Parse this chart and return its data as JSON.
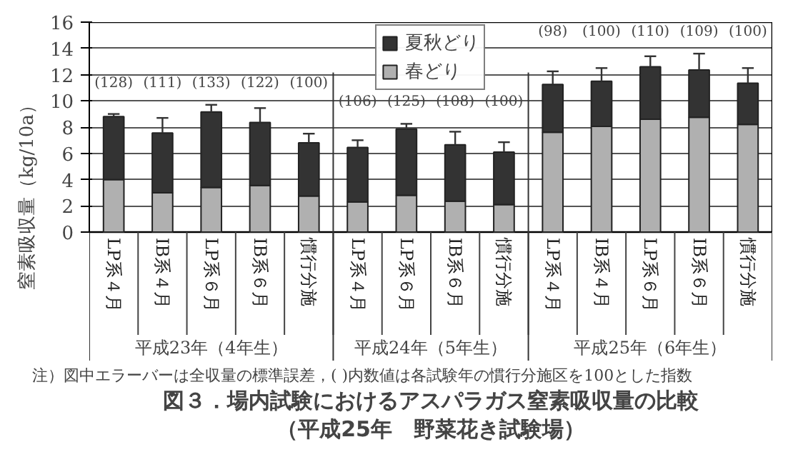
{
  "chart_data": {
    "type": "bar",
    "stacked": true,
    "title": "図３．場内試験におけるアスパラガス窒素吸収量の比較",
    "subtitle": "（平成25年　野菜花き試験場）",
    "ylabel": "窒素吸収量（kg/10a）",
    "categories": [
      "LP系４月",
      "IB系４月",
      "LP系６月",
      "IB系６月",
      "慣行分施",
      "LP系４月",
      "LP系６月",
      "IB系６月",
      "慣行分施",
      "LP系４月",
      "IB系４月",
      "LP系６月",
      "IB系６月",
      "慣行分施"
    ],
    "series": [
      {
        "name": "春どり",
        "color": "#b0b0b0",
        "values": [
          4.0,
          3.0,
          3.4,
          3.55,
          2.75,
          2.3,
          2.8,
          2.35,
          2.1,
          7.6,
          8.05,
          8.6,
          8.75,
          8.2
        ]
      },
      {
        "name": "夏秋どり",
        "color": "#333333",
        "values": [
          4.8,
          4.55,
          5.75,
          4.8,
          4.05,
          4.15,
          5.05,
          4.3,
          4.0,
          3.65,
          3.45,
          4.0,
          3.6,
          3.15
        ],
        "errors": [
          [
            8.8,
            9.0
          ],
          [
            7.55,
            8.7
          ],
          [
            9.15,
            9.7
          ],
          [
            8.35,
            9.45
          ],
          [
            6.8,
            7.5
          ],
          [
            6.45,
            7.0
          ],
          [
            7.85,
            8.25
          ],
          [
            6.65,
            7.65
          ],
          [
            6.1,
            6.85
          ],
          [
            11.25,
            12.25
          ],
          [
            11.5,
            12.5
          ],
          [
            12.6,
            13.4
          ],
          [
            12.35,
            13.6
          ],
          [
            11.35,
            12.5
          ]
        ]
      }
    ],
    "ylim": [
      0,
      16
    ],
    "yticks": [
      0,
      2,
      4,
      6,
      8,
      10,
      12,
      14,
      16
    ],
    "grid": "y",
    "legend": "top",
    "annotations": [
      "(128)",
      "(111)",
      "(133)",
      "(122)",
      "(100)",
      "(106)",
      "(125)",
      "(108)",
      "(100)",
      "(98)",
      "(100)",
      "(110)",
      "(109)",
      "(100)",
      "平成23年（4年生）",
      "平成24年（5年生）",
      "平成25年（6年生）",
      "注）図中エラーバーは全収量の標準誤差，( )内数値は各試験年の慣行分施区を100とした指数"
    ]
  }
}
